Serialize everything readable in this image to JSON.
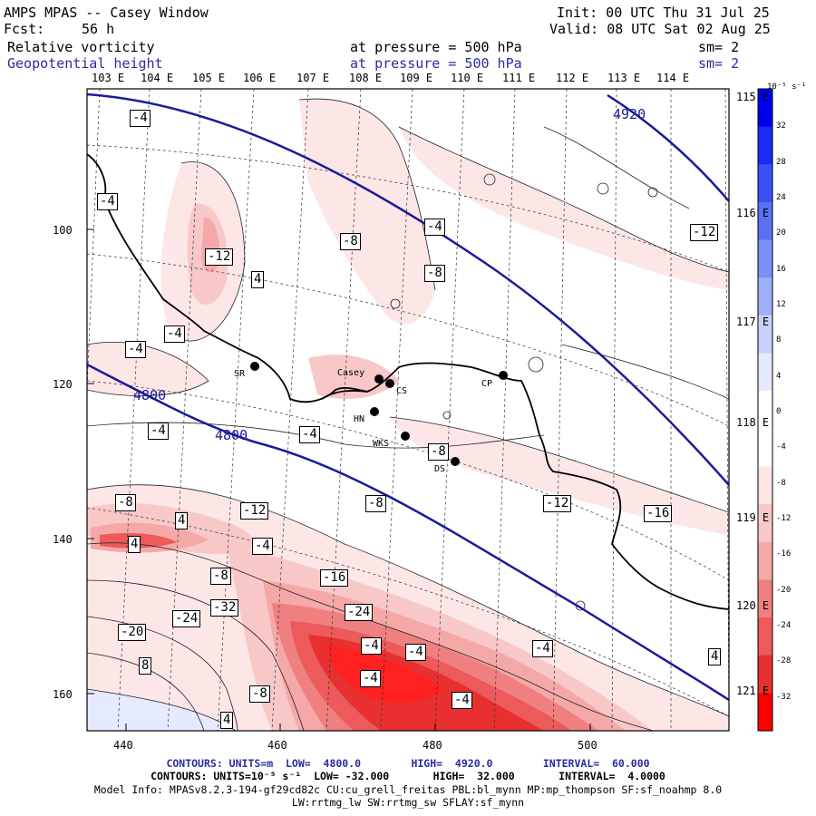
{
  "header": {
    "title": "AMPS MPAS -- Casey Window",
    "fcst_label": "Fcst:",
    "fcst_value": "56 h",
    "init": "Init: 00 UTC Thu 31 Jul 25",
    "valid": "Valid: 08 UTC Sat 02 Aug 25",
    "field1": "Relative vorticity",
    "field1_level": "at pressure =  500 hPa",
    "field1_sm": "sm= 2",
    "field2": "Geopotential height",
    "field2_level": "at pressure =  500 hPa",
    "field2_sm": "sm= 2"
  },
  "axes": {
    "top_lon": [
      "103 E",
      "104 E",
      "105 E",
      "106 E",
      "107 E",
      "108 E",
      "109 E",
      "110 E",
      "111 E",
      "112 E",
      "113 E",
      "114 E"
    ],
    "right_lon": [
      "115 E",
      "116 E",
      "117 E",
      "118 E",
      "119 E",
      "120 E",
      "121 E"
    ],
    "left_y": [
      "100",
      "120",
      "140",
      "160"
    ],
    "bottom_x": [
      "440",
      "460",
      "480",
      "500"
    ]
  },
  "colorbar": {
    "unit": "10⁻⁵ s⁻¹",
    "labels": [
      "32",
      "28",
      "24",
      "20",
      "16",
      "12",
      "8",
      "4",
      "0",
      "-4",
      "-8",
      "-12",
      "-16",
      "-20",
      "-24",
      "-28",
      "-32"
    ],
    "colors": [
      "#0000f0",
      "#1a2cf5",
      "#3a50f5",
      "#5a70f5",
      "#7a90f8",
      "#a0b0fa",
      "#c8d0fc",
      "#e6eafe",
      "#ffffff",
      "#ffffff",
      "#fde6e6",
      "#f8c8c8",
      "#f4a8a8",
      "#f08080",
      "#ec5a5a",
      "#e83030",
      "#ff0000"
    ]
  },
  "stations": [
    {
      "id": "SR",
      "label": "SR"
    },
    {
      "id": "Casey",
      "label": "Casey"
    },
    {
      "id": "CS",
      "label": "CS"
    },
    {
      "id": "CP",
      "label": "CP"
    },
    {
      "id": "HN",
      "label": "HN"
    },
    {
      "id": "WKS",
      "label": "WKS"
    },
    {
      "id": "DS",
      "label": "DS"
    }
  ],
  "height_labels": [
    "4920",
    "4800",
    "4800"
  ],
  "vorticity_labels": [
    "-4",
    "-4",
    "-12",
    "4",
    "-8",
    "-4",
    "-8",
    "-4",
    "-4",
    "-4",
    "-4",
    "-8",
    "-8",
    "-12",
    "-16",
    "-12",
    "-8",
    "-12",
    "4",
    "4",
    "-4",
    "-8",
    "-16",
    "-24",
    "-20",
    "-32",
    "-24",
    "-4",
    "-4",
    "-4",
    "-4",
    "-4",
    "4",
    "-8",
    "8",
    "4"
  ],
  "footer": {
    "line1": "CONTOURS: UNITS=m  LOW=  4800.0        HIGH=  4920.0        INTERVAL=  60.000",
    "line2": "CONTOURS: UNITS=10⁻⁵ s⁻¹  LOW= -32.000       HIGH=  32.000       INTERVAL=  4.0000",
    "line3": "Model Info: MPASv8.2.3-194-gf29cd82c CU:cu_grell_freitas PBL:bl_mynn MP:mp_thompson SF:sf_noahmp 8.0",
    "line4": "LW:rrtmg_lw SW:rrtmg_sw SFLAY:sf_mynn"
  },
  "colors": {
    "height_contour": "#1a1a9a",
    "coast": "#000000",
    "colorbar_top": "#0000f0",
    "colorbar_bottom": "#ff0000"
  }
}
